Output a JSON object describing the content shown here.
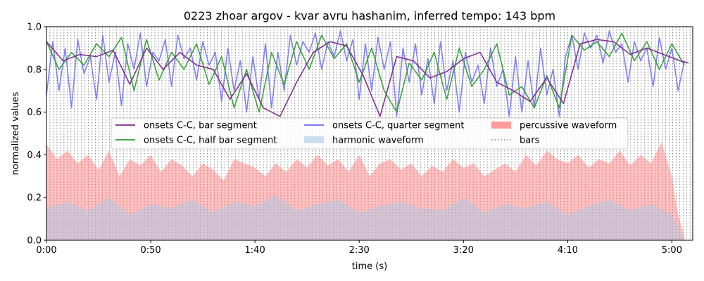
{
  "chart_data": {
    "type": "line",
    "title": "0223 zhoar argov - kvar avru hashanim, inferred tempo: 143 bpm",
    "xlabel": "time (s)",
    "ylabel": "normalized values",
    "xlim": [
      0,
      310
    ],
    "ylim": [
      0.0,
      1.0
    ],
    "xticks": [
      {
        "value": 0,
        "label": "0:00"
      },
      {
        "value": 50,
        "label": "0:50"
      },
      {
        "value": 100,
        "label": "1:40"
      },
      {
        "value": 150,
        "label": "2:30"
      },
      {
        "value": 200,
        "label": "3:20"
      },
      {
        "value": 250,
        "label": "4:10"
      },
      {
        "value": 300,
        "label": "5:00"
      }
    ],
    "yticks": [
      {
        "value": 0.0,
        "label": "0.0"
      },
      {
        "value": 0.2,
        "label": "0.2"
      },
      {
        "value": 0.4,
        "label": "0.4"
      },
      {
        "value": 0.6,
        "label": "0.6"
      },
      {
        "value": 0.8,
        "label": "0.8"
      },
      {
        "value": 1.0,
        "label": "1.0"
      }
    ],
    "bar_interval_s": 1.678,
    "legend_placement": "center",
    "series": [
      {
        "name": "onsets C-C, bar segment",
        "color": "#7b2a8a",
        "x": [
          0,
          8,
          16,
          24,
          32,
          40,
          48,
          56,
          64,
          72,
          80,
          88,
          96,
          104,
          112,
          120,
          128,
          136,
          144,
          152,
          160,
          168,
          176,
          184,
          192,
          200,
          208,
          216,
          224,
          232,
          240,
          248,
          256,
          264,
          272,
          280,
          288,
          296,
          304,
          308
        ],
        "y": [
          0.93,
          0.84,
          0.87,
          0.86,
          0.89,
          0.73,
          0.9,
          0.8,
          0.88,
          0.82,
          0.8,
          0.66,
          0.78,
          0.62,
          0.58,
          0.74,
          0.88,
          0.93,
          0.91,
          0.77,
          0.58,
          0.86,
          0.84,
          0.76,
          0.79,
          0.85,
          0.88,
          0.74,
          0.7,
          0.65,
          0.76,
          0.64,
          0.92,
          0.94,
          0.93,
          0.87,
          0.9,
          0.87,
          0.84,
          0.83
        ]
      },
      {
        "name": "onsets C-C, half bar segment",
        "color": "#2a9a2a",
        "x": [
          0,
          6,
          12,
          18,
          24,
          30,
          36,
          42,
          48,
          54,
          60,
          66,
          72,
          78,
          84,
          90,
          96,
          102,
          108,
          114,
          120,
          126,
          132,
          138,
          144,
          150,
          156,
          162,
          168,
          174,
          180,
          186,
          192,
          198,
          204,
          210,
          216,
          222,
          228,
          234,
          240,
          246,
          252,
          258,
          264,
          270,
          276,
          282,
          288,
          294,
          300,
          306
        ],
        "y": [
          0.93,
          0.8,
          0.88,
          0.82,
          0.92,
          0.86,
          0.95,
          0.7,
          0.94,
          0.75,
          0.88,
          0.8,
          0.92,
          0.73,
          0.86,
          0.62,
          0.8,
          0.6,
          0.88,
          0.73,
          0.93,
          0.8,
          0.96,
          0.85,
          0.92,
          0.74,
          0.9,
          0.7,
          0.6,
          0.83,
          0.75,
          0.88,
          0.66,
          0.9,
          0.72,
          0.8,
          0.92,
          0.68,
          0.72,
          0.62,
          0.77,
          0.62,
          0.96,
          0.89,
          0.93,
          0.86,
          0.97,
          0.84,
          0.93,
          0.8,
          0.92,
          0.82
        ]
      },
      {
        "name": "onsets C-C, quarter segment",
        "color": "#6464f0",
        "x": [
          0,
          3,
          6,
          9,
          12,
          15,
          18,
          21,
          24,
          27,
          30,
          33,
          36,
          39,
          42,
          45,
          48,
          51,
          54,
          57,
          60,
          63,
          66,
          69,
          72,
          75,
          78,
          81,
          84,
          87,
          90,
          93,
          96,
          99,
          102,
          105,
          108,
          111,
          114,
          117,
          120,
          123,
          126,
          129,
          132,
          135,
          138,
          141,
          144,
          147,
          150,
          153,
          156,
          159,
          162,
          165,
          168,
          171,
          174,
          177,
          180,
          183,
          186,
          189,
          192,
          195,
          198,
          201,
          204,
          207,
          210,
          213,
          216,
          219,
          222,
          225,
          228,
          231,
          234,
          237,
          240,
          243,
          246,
          249,
          252,
          255,
          258,
          261,
          264,
          267,
          270,
          273,
          276,
          279,
          282,
          285,
          288,
          291,
          294,
          297,
          300,
          303,
          306
        ],
        "y": [
          0.68,
          0.93,
          0.7,
          0.9,
          0.62,
          0.94,
          0.78,
          0.86,
          0.66,
          0.96,
          0.74,
          0.88,
          0.63,
          0.92,
          0.8,
          0.97,
          0.72,
          0.88,
          0.84,
          0.94,
          0.72,
          0.96,
          0.85,
          0.9,
          0.75,
          0.93,
          0.82,
          0.88,
          0.65,
          0.9,
          0.7,
          0.84,
          0.6,
          0.86,
          0.66,
          0.92,
          0.62,
          0.88,
          0.7,
          0.96,
          0.82,
          0.93,
          0.88,
          0.97,
          0.8,
          0.93,
          0.86,
          0.98,
          0.84,
          0.94,
          0.66,
          0.92,
          0.7,
          0.95,
          0.8,
          0.93,
          0.58,
          0.9,
          0.74,
          0.92,
          0.68,
          0.85,
          0.64,
          0.93,
          0.7,
          0.84,
          0.6,
          0.88,
          0.74,
          0.82,
          0.64,
          0.9,
          0.72,
          0.8,
          0.58,
          0.86,
          0.6,
          0.84,
          0.62,
          0.9,
          0.68,
          0.8,
          0.58,
          0.86,
          0.96,
          0.8,
          0.97,
          0.9,
          0.96,
          0.83,
          0.98,
          0.88,
          0.92,
          0.74,
          0.93,
          0.84,
          0.9,
          0.72,
          0.95,
          0.8,
          0.9,
          0.7,
          0.84
        ]
      },
      {
        "name": "harmonic waveform",
        "color": "#a9c8e6",
        "kind": "fill",
        "x": [
          0,
          10,
          20,
          30,
          40,
          50,
          60,
          70,
          80,
          90,
          100,
          110,
          120,
          130,
          140,
          150,
          160,
          170,
          180,
          190,
          200,
          210,
          220,
          230,
          240,
          250,
          260,
          270,
          280,
          290,
          300,
          303,
          306
        ],
        "y": [
          0.15,
          0.18,
          0.14,
          0.2,
          0.12,
          0.17,
          0.15,
          0.19,
          0.13,
          0.18,
          0.16,
          0.21,
          0.14,
          0.17,
          0.19,
          0.13,
          0.16,
          0.18,
          0.15,
          0.14,
          0.2,
          0.13,
          0.17,
          0.15,
          0.18,
          0.12,
          0.16,
          0.19,
          0.14,
          0.17,
          0.12,
          0.06,
          0.0
        ]
      },
      {
        "name": "percussive waveform",
        "color": "#ff7070",
        "kind": "fill",
        "x": [
          0,
          5,
          10,
          15,
          20,
          25,
          30,
          35,
          40,
          45,
          50,
          55,
          60,
          65,
          70,
          75,
          80,
          85,
          90,
          95,
          100,
          105,
          110,
          115,
          120,
          125,
          130,
          135,
          140,
          145,
          150,
          155,
          160,
          165,
          170,
          175,
          180,
          185,
          190,
          195,
          200,
          205,
          210,
          215,
          220,
          225,
          230,
          235,
          240,
          245,
          250,
          255,
          260,
          265,
          270,
          275,
          280,
          285,
          290,
          295,
          300,
          303,
          306
        ],
        "y": [
          0.45,
          0.38,
          0.42,
          0.36,
          0.4,
          0.33,
          0.42,
          0.3,
          0.38,
          0.35,
          0.4,
          0.32,
          0.38,
          0.35,
          0.3,
          0.36,
          0.33,
          0.28,
          0.38,
          0.36,
          0.34,
          0.3,
          0.36,
          0.32,
          0.38,
          0.34,
          0.4,
          0.35,
          0.38,
          0.32,
          0.4,
          0.3,
          0.36,
          0.38,
          0.33,
          0.36,
          0.3,
          0.35,
          0.32,
          0.38,
          0.34,
          0.36,
          0.3,
          0.33,
          0.36,
          0.32,
          0.4,
          0.35,
          0.42,
          0.38,
          0.36,
          0.4,
          0.34,
          0.38,
          0.36,
          0.42,
          0.35,
          0.4,
          0.36,
          0.46,
          0.3,
          0.12,
          0.02
        ]
      },
      {
        "name": "bars",
        "color": "#808080",
        "kind": "vlines"
      }
    ]
  }
}
